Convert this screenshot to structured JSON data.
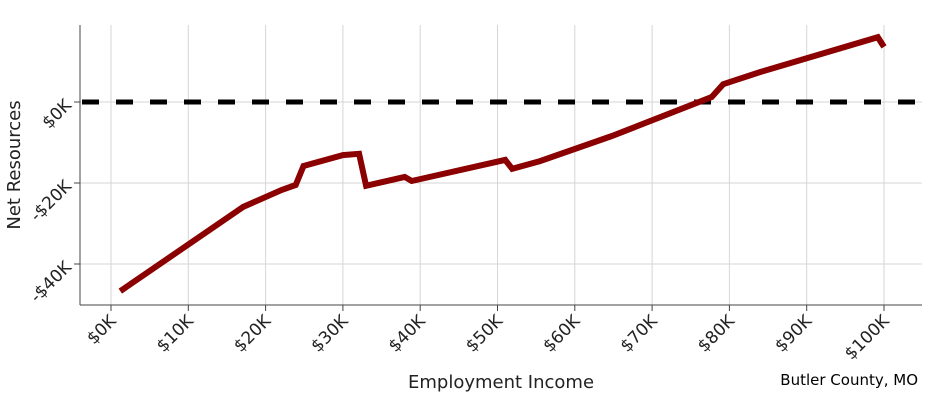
{
  "chart_data": {
    "type": "line",
    "title": "",
    "xlabel": "Employment Income",
    "ylabel": "Net Resources",
    "xlim": [
      -4000,
      105000
    ],
    "ylim": [
      -50000,
      19000
    ],
    "x_ticks": [
      0,
      10000,
      20000,
      30000,
      40000,
      50000,
      60000,
      70000,
      80000,
      90000,
      100000
    ],
    "x_tick_labels": [
      "$0K",
      "$10K",
      "$20K",
      "$30K",
      "$40K",
      "$50K",
      "$60K",
      "$70K",
      "$80K",
      "$90K",
      "$100K"
    ],
    "y_ticks": [
      -40000,
      -20000,
      0
    ],
    "y_tick_labels": [
      "-$40K",
      "-$20K",
      "$0K"
    ],
    "grid": true,
    "reference_line": {
      "y": 0,
      "style": "dashed",
      "color": "#000000"
    },
    "series": [
      {
        "color": "#8b0000",
        "x": [
          1200,
          17100,
          22100,
          23900,
          24900,
          30000,
          32100,
          33000,
          38000,
          38900,
          51000,
          51900,
          55500,
          64800,
          77700,
          79200,
          84000,
          99200,
          100000
        ],
        "y": [
          -46700,
          -25900,
          -21700,
          -20500,
          -15800,
          -13100,
          -12800,
          -20700,
          -18500,
          -19500,
          -14300,
          -16500,
          -14600,
          -8400,
          1200,
          4400,
          7400,
          16000,
          13600
        ]
      }
    ]
  },
  "annotation": "Butler County, MO"
}
